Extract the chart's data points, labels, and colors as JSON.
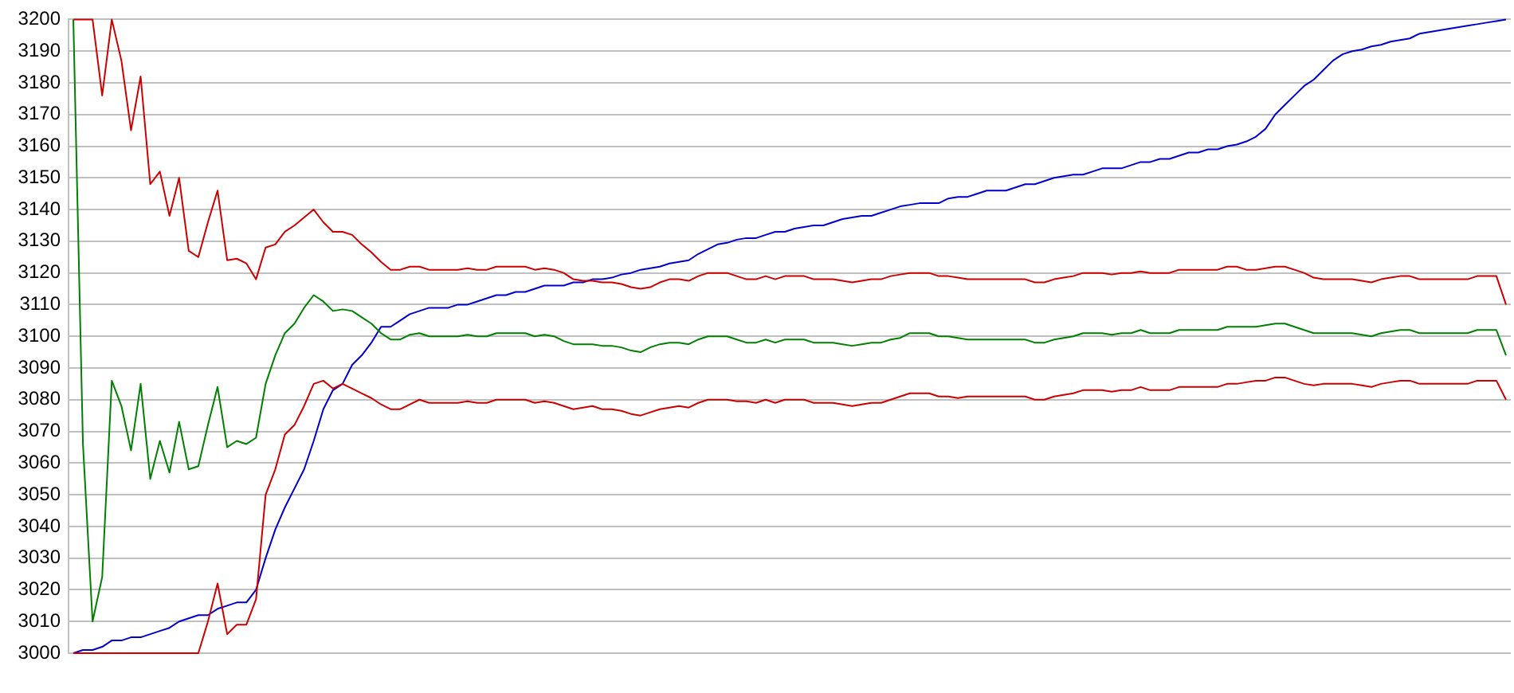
{
  "chart_data": {
    "type": "line",
    "categories": [
      null,
      null,
      null,
      null,
      null,
      null,
      null,
      null,
      null,
      null,
      null,
      null,
      null,
      null,
      null,
      null,
      null,
      null,
      null,
      null,
      null,
      null,
      null,
      null,
      null,
      null,
      null,
      null,
      null,
      null,
      null,
      null,
      null,
      null,
      null,
      null,
      null,
      null,
      null,
      null,
      null,
      null,
      null,
      null,
      null,
      null,
      null,
      null,
      null,
      null,
      null,
      null,
      null,
      null,
      null,
      null,
      null,
      null,
      null,
      null,
      null,
      null,
      null,
      null,
      null,
      null,
      null,
      null,
      null,
      null,
      null,
      null,
      null,
      null,
      null,
      null,
      null,
      null,
      null,
      null,
      null,
      null,
      null,
      null,
      null,
      null,
      null,
      null,
      null,
      null,
      null,
      null,
      null,
      null,
      null,
      null,
      null,
      null,
      null,
      null,
      null,
      null,
      null,
      null,
      null,
      null,
      null,
      null,
      null,
      null,
      null,
      null,
      null,
      null,
      null,
      null,
      null,
      null,
      null,
      null,
      null,
      null,
      null,
      null,
      null,
      null,
      null,
      null,
      null,
      null,
      null,
      null,
      null,
      null,
      null,
      null,
      null,
      null,
      null,
      null,
      null,
      null,
      null,
      null,
      null,
      null,
      null,
      null,
      null,
      null
    ],
    "series": [
      {
        "color": "#cc0000",
        "values": [
          3200,
          3200,
          3200,
          3176,
          3200,
          3187,
          3165,
          3182,
          3148,
          3152,
          3138,
          3150,
          3127,
          3125,
          3136,
          3146,
          3124,
          3124.5,
          3123,
          3118,
          3128,
          3129,
          3133,
          3135,
          3137.5,
          3140,
          3136,
          3133,
          3133,
          3132,
          3129,
          3126.5,
          3123.5,
          3121,
          3121,
          3122,
          3122,
          3121,
          3121,
          3121,
          3121,
          3121.5,
          3121,
          3121,
          3122,
          3122,
          3122,
          3122,
          3121,
          3121.5,
          3121,
          3120,
          3118,
          3117.5,
          3117.5,
          3117,
          3117,
          3116.5,
          3115.5,
          3115,
          3115.5,
          3117,
          3118,
          3118,
          3117.5,
          3119,
          3120,
          3120,
          3120,
          3119,
          3118,
          3118,
          3119,
          3118,
          3119,
          3119,
          3119,
          3118,
          3118,
          3118,
          3117.5,
          3117,
          3117.5,
          3118,
          3118,
          3119,
          3119.5,
          3120,
          3120,
          3120,
          3119,
          3119,
          3118.5,
          3118,
          3118,
          3118,
          3118,
          3118,
          3118,
          3118,
          3117,
          3117,
          3118,
          3118.5,
          3119,
          3120,
          3120,
          3120,
          3119.5,
          3120,
          3120,
          3120.5,
          3120,
          3120,
          3120,
          3121,
          3121,
          3121,
          3121,
          3121,
          3122,
          3122,
          3121,
          3121,
          3121.5,
          3122,
          3122,
          3121,
          3120,
          3118.5,
          3118,
          3118,
          3118,
          3118,
          3117.5,
          3117,
          3118,
          3118.5,
          3119,
          3119,
          3118,
          3118,
          3118,
          3118,
          3118,
          3118,
          3119,
          3119,
          3119,
          3110
        ]
      },
      {
        "color": "#008000",
        "values": [
          3200,
          3066,
          3010,
          3024,
          3086,
          3078,
          3064,
          3085,
          3055,
          3067,
          3057,
          3073,
          3058,
          3059,
          3072,
          3084,
          3065,
          3067,
          3066,
          3068,
          3085,
          3094,
          3101,
          3104,
          3109,
          3113,
          3111,
          3108,
          3108.5,
          3108,
          3106,
          3104,
          3101,
          3099,
          3099,
          3100.5,
          3101,
          3100,
          3100,
          3100,
          3100,
          3100.5,
          3100,
          3100,
          3101,
          3101,
          3101,
          3101,
          3100,
          3100.5,
          3100,
          3098.5,
          3097.5,
          3097.5,
          3097.5,
          3097,
          3097,
          3096.5,
          3095.5,
          3095,
          3096.5,
          3097.5,
          3098,
          3098,
          3097.5,
          3099,
          3100,
          3100,
          3100,
          3099,
          3098,
          3098,
          3099,
          3098,
          3099,
          3099,
          3099,
          3098,
          3098,
          3098,
          3097.5,
          3097,
          3097.5,
          3098,
          3098,
          3099,
          3099.5,
          3101,
          3101,
          3101,
          3100,
          3100,
          3099.5,
          3099,
          3099,
          3099,
          3099,
          3099,
          3099,
          3099,
          3098,
          3098,
          3099,
          3099.5,
          3100,
          3101,
          3101,
          3101,
          3100.5,
          3101,
          3101,
          3102,
          3101,
          3101,
          3101,
          3102,
          3102,
          3102,
          3102,
          3102,
          3103,
          3103,
          3103,
          3103,
          3103.5,
          3104,
          3104,
          3103,
          3102,
          3101,
          3101,
          3101,
          3101,
          3101,
          3100.5,
          3100,
          3101,
          3101.5,
          3102,
          3102,
          3101,
          3101,
          3101,
          3101,
          3101,
          3101,
          3102,
          3102,
          3102,
          3094
        ]
      },
      {
        "color": "#cc0000",
        "values": [
          3000,
          3000,
          3000,
          3000,
          3000,
          3000,
          3000,
          3000,
          3000,
          3000,
          3000,
          3000,
          3000,
          3000,
          3010,
          3022,
          3006,
          3009,
          3009,
          3017,
          3050,
          3058,
          3069,
          3072,
          3078,
          3085,
          3086,
          3083.5,
          3085,
          3083.5,
          3082,
          3080.5,
          3078.5,
          3077,
          3077,
          3078.5,
          3080,
          3079,
          3079,
          3079,
          3079,
          3079.5,
          3079,
          3079,
          3080,
          3080,
          3080,
          3080,
          3079,
          3079.5,
          3079,
          3078,
          3077,
          3077.5,
          3078,
          3077,
          3077,
          3076.5,
          3075.5,
          3075,
          3076,
          3077,
          3077.5,
          3078,
          3077.5,
          3079,
          3080,
          3080,
          3080,
          3079.5,
          3079.5,
          3079,
          3080,
          3079,
          3080,
          3080,
          3080,
          3079,
          3079,
          3079,
          3078.5,
          3078,
          3078.5,
          3079,
          3079,
          3080,
          3081,
          3082,
          3082,
          3082,
          3081,
          3081,
          3080.5,
          3081,
          3081,
          3081,
          3081,
          3081,
          3081,
          3081,
          3080,
          3080,
          3081,
          3081.5,
          3082,
          3083,
          3083,
          3083,
          3082.5,
          3083,
          3083,
          3084,
          3083,
          3083,
          3083,
          3084,
          3084,
          3084,
          3084,
          3084,
          3085,
          3085,
          3085.5,
          3086,
          3086,
          3087,
          3087,
          3086,
          3085,
          3084.5,
          3085,
          3085,
          3085,
          3085,
          3084.5,
          3084,
          3085,
          3085.5,
          3086,
          3086,
          3085,
          3085,
          3085,
          3085,
          3085,
          3085,
          3086,
          3086,
          3086,
          3080
        ]
      },
      {
        "color": "#0000cc",
        "values": [
          3000,
          3001,
          3001,
          3002,
          3004,
          3004,
          3005,
          3005,
          3006,
          3007,
          3008,
          3010,
          3011,
          3012,
          3012,
          3014,
          3015,
          3016,
          3016,
          3020,
          3030,
          3039,
          3046,
          3052,
          3058,
          3067,
          3077,
          3083,
          3085,
          3091,
          3094,
          3098,
          3103,
          3103,
          3105,
          3107,
          3108,
          3109,
          3109,
          3109,
          3110,
          3110,
          3111,
          3112,
          3113,
          3113,
          3114,
          3114,
          3115,
          3116,
          3116,
          3116,
          3117,
          3117,
          3118,
          3118,
          3118.5,
          3119.5,
          3120,
          3121,
          3121.5,
          3122,
          3123,
          3123.5,
          3124,
          3126,
          3127.5,
          3129,
          3129.5,
          3130.5,
          3131,
          3131,
          3132,
          3133,
          3133,
          3134,
          3134.5,
          3135,
          3135,
          3136,
          3137,
          3137.5,
          3138,
          3138,
          3139,
          3140,
          3141,
          3141.5,
          3142,
          3142,
          3142,
          3143.5,
          3144,
          3144,
          3145,
          3146,
          3146,
          3146,
          3147,
          3148,
          3148,
          3149,
          3150,
          3150.5,
          3151,
          3151,
          3152,
          3153,
          3153,
          3153,
          3154,
          3155,
          3155,
          3156,
          3156,
          3157,
          3158,
          3158,
          3159,
          3159,
          3160,
          3160.5,
          3161.5,
          3163,
          3165.5,
          3170,
          3173,
          3176,
          3179,
          3181,
          3184,
          3187,
          3189,
          3190,
          3190.5,
          3191.5,
          3192,
          3193,
          3193.5,
          3194,
          3195.5,
          3196,
          3196.5,
          3197,
          3197.5,
          3198,
          3198.5,
          3199,
          3199.5,
          3200
        ]
      }
    ],
    "ylim": [
      3000,
      3200
    ],
    "yticks": [
      3000,
      3010,
      3020,
      3030,
      3040,
      3050,
      3060,
      3070,
      3080,
      3090,
      3100,
      3110,
      3120,
      3130,
      3140,
      3150,
      3160,
      3170,
      3180,
      3190,
      3200
    ],
    "grid": "y",
    "legend": false,
    "marker": "none"
  }
}
